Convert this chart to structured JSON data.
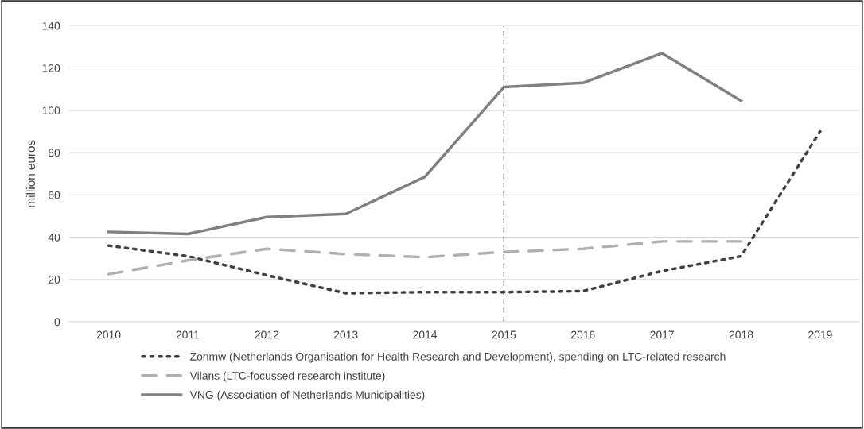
{
  "chart_data": {
    "type": "line",
    "ylabel": "million euros",
    "categories": [
      "2010",
      "2011",
      "2012",
      "2013",
      "2014",
      "2015",
      "2016",
      "2017",
      "2018",
      "2019"
    ],
    "series": [
      {
        "name": "Zonmw (Netherlands Organisation for Health Research and Development), spending on LTC-related research",
        "color": "#404040",
        "line_style": "dotted",
        "values": [
          36,
          31,
          22,
          13.5,
          14,
          14,
          14.5,
          24,
          31,
          90
        ]
      },
      {
        "name": "Vilans (LTC-focussed research institute)",
        "color": "#b0b0b0",
        "line_style": "dashed",
        "values": [
          22.5,
          29,
          34.5,
          32,
          30.5,
          33,
          34.5,
          38,
          38,
          null
        ]
      },
      {
        "name": "VNG (Association of Netherlands Municipalities)",
        "color": "#808080",
        "line_style": "solid",
        "values": [
          42.5,
          41.5,
          49.5,
          51,
          68.5,
          111,
          113,
          127,
          104.5,
          null
        ]
      }
    ],
    "ylim": [
      0,
      140
    ],
    "yticks": [
      0,
      20,
      40,
      60,
      80,
      100,
      120,
      140
    ],
    "grid": "y",
    "legend": "bottom",
    "ref_lines": [
      {
        "axis": "x",
        "value": "2015",
        "color": "#000000",
        "line_style": "dashed"
      }
    ]
  }
}
